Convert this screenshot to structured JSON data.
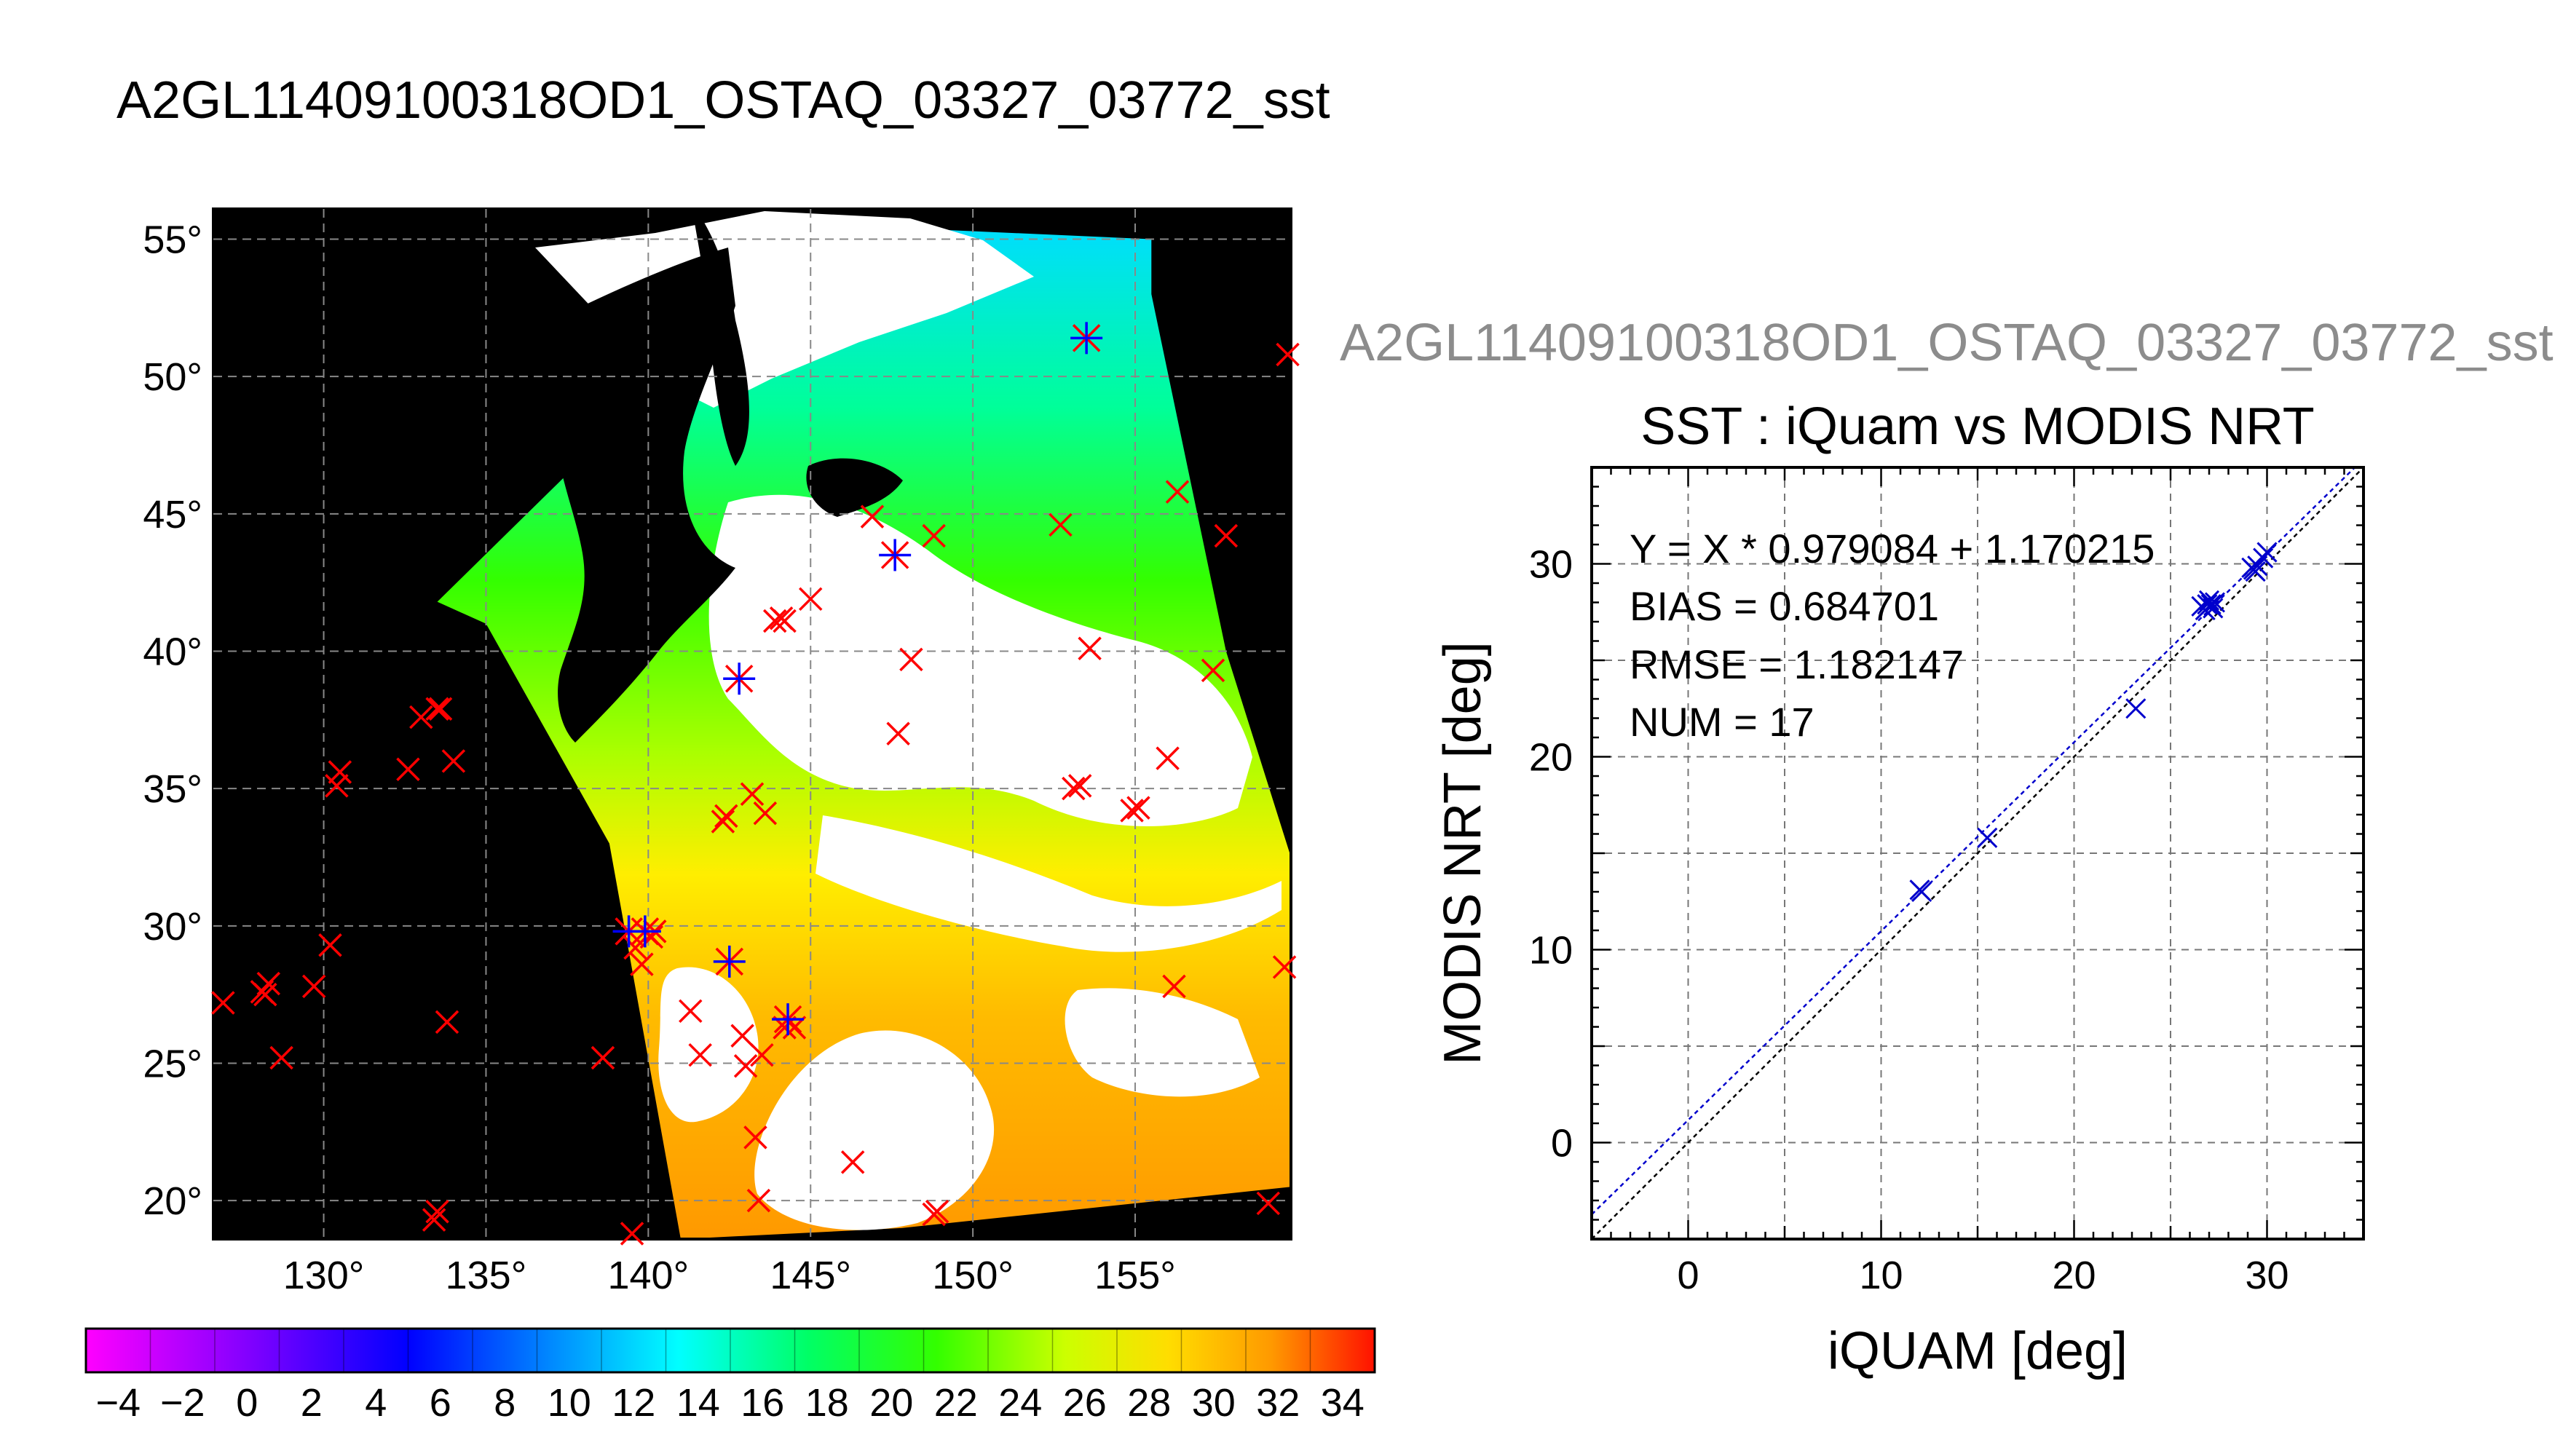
{
  "page": {
    "title": "A2GL11409100318OD1_OSTAQ_03327_03772_sst",
    "secondary_title": "A2GL11409100318OD1_OSTAQ_03327_03772_sst"
  },
  "chart_data": [
    {
      "type": "heatmap",
      "title": "A2GL11409100318OD1_OSTAQ_03327_03772_sst",
      "xlim": [
        126.6,
        159.8
      ],
      "ylim": [
        18.6,
        56.1
      ],
      "x_ticks": [
        130,
        135,
        140,
        145,
        150,
        155
      ],
      "x_tick_labels": [
        "130°",
        "135°",
        "140°",
        "145°",
        "150°",
        "155°"
      ],
      "y_ticks": [
        20,
        25,
        30,
        35,
        40,
        45,
        50,
        55
      ],
      "y_tick_labels": [
        "20°",
        "25°",
        "30°",
        "35°",
        "40°",
        "45°",
        "50°",
        "55°"
      ],
      "grid": true,
      "swath_lonlat": [
        [
          133.5,
          41.8
        ],
        [
          141.0,
          50.5
        ],
        [
          146.0,
          55.5
        ],
        [
          155.5,
          55.0
        ],
        [
          155.5,
          53.0
        ],
        [
          157.8,
          40.0
        ],
        [
          159.8,
          32.5
        ],
        [
          159.8,
          20.5
        ],
        [
          147.8,
          19.0
        ],
        [
          141.0,
          18.6
        ],
        [
          138.8,
          33.0
        ],
        [
          135.0,
          41.0
        ]
      ],
      "colorbar": {
        "min": -5,
        "max": 35,
        "step": 2,
        "tick_values": [
          -4,
          -2,
          0,
          2,
          4,
          6,
          8,
          10,
          12,
          14,
          16,
          18,
          20,
          22,
          24,
          26,
          28,
          30,
          32,
          34
        ],
        "tick_labels": [
          "−4",
          "−2",
          "0",
          "2",
          "4",
          "6",
          "8",
          "10",
          "12",
          "14",
          "16",
          "18",
          "20",
          "22",
          "24",
          "26",
          "28",
          "30",
          "32",
          "34"
        ]
      },
      "legend": {
        "ship_marker_color": "#ff0000",
        "matched_marker_color": "#0000ff"
      },
      "in_situ_points": [
        [
          126.9,
          27.2
        ],
        [
          128.3,
          27.9
        ],
        [
          128.2,
          27.5
        ],
        [
          128.1,
          27.6
        ],
        [
          128.7,
          25.2
        ],
        [
          129.7,
          27.8
        ],
        [
          130.2,
          29.3
        ],
        [
          130.4,
          35.1
        ],
        [
          130.5,
          35.6
        ],
        [
          132.6,
          35.7
        ],
        [
          133.0,
          37.6
        ],
        [
          133.5,
          37.9
        ],
        [
          133.6,
          37.9
        ],
        [
          134.0,
          36.0
        ],
        [
          133.8,
          26.5
        ],
        [
          133.5,
          19.6
        ],
        [
          133.4,
          19.3
        ],
        [
          138.6,
          25.2
        ],
        [
          139.5,
          18.8
        ],
        [
          139.6,
          29.2
        ],
        [
          139.8,
          28.6
        ],
        [
          140.1,
          29.6
        ],
        [
          140.2,
          29.8
        ],
        [
          141.3,
          26.9
        ],
        [
          141.6,
          25.3
        ],
        [
          142.3,
          33.8
        ],
        [
          142.4,
          34.0
        ],
        [
          142.9,
          26.0
        ],
        [
          143.0,
          24.9
        ],
        [
          143.2,
          34.8
        ],
        [
          143.5,
          25.3
        ],
        [
          143.6,
          34.1
        ],
        [
          143.3,
          22.3
        ],
        [
          143.4,
          20.0
        ],
        [
          144.2,
          26.3
        ],
        [
          144.5,
          26.3
        ],
        [
          143.9,
          41.1
        ],
        [
          144.1,
          41.2
        ],
        [
          144.2,
          41.1
        ],
        [
          145.0,
          41.9
        ],
        [
          146.3,
          21.4
        ],
        [
          146.9,
          44.9
        ],
        [
          147.7,
          37.0
        ],
        [
          148.1,
          39.7
        ],
        [
          148.8,
          44.2
        ],
        [
          148.9,
          19.6
        ],
        [
          148.8,
          19.5
        ],
        [
          152.7,
          44.6
        ],
        [
          153.1,
          35.0
        ],
        [
          153.3,
          35.1
        ],
        [
          153.6,
          40.1
        ],
        [
          154.9,
          34.2
        ],
        [
          155.1,
          34.3
        ],
        [
          156.0,
          36.1
        ],
        [
          156.2,
          27.8
        ],
        [
          156.3,
          45.8
        ],
        [
          157.4,
          39.3
        ],
        [
          157.8,
          44.2
        ],
        [
          159.1,
          19.9
        ],
        [
          159.6,
          28.5
        ],
        [
          159.7,
          50.8
        ]
      ],
      "matched_points": [
        [
          142.8,
          39.0
        ],
        [
          147.6,
          43.5
        ],
        [
          153.5,
          51.4
        ],
        [
          142.5,
          28.7
        ],
        [
          139.4,
          29.8
        ],
        [
          139.9,
          29.8
        ],
        [
          144.3,
          26.6
        ]
      ]
    },
    {
      "type": "scatter",
      "title": "SST : iQuam vs MODIS NRT",
      "xlabel": "iQUAM [deg]",
      "ylabel": "MODIS NRT [deg]",
      "xlim": [
        -5,
        35
      ],
      "ylim": [
        -5,
        35
      ],
      "x_ticks": [
        0,
        10,
        20,
        30
      ],
      "y_ticks": [
        0,
        10,
        20,
        30
      ],
      "grid": true,
      "stats": {
        "fit_label": "Y = X * 0.979084 + 1.170215",
        "bias_label": "BIAS = 0.684701",
        "rmse_label": "RMSE = 1.182147",
        "num_label": "NUM = 17"
      },
      "fit": {
        "slope": 0.979084,
        "intercept": 1.170215
      },
      "points": [
        {
          "x": 12.0,
          "y": 13.1
        },
        {
          "x": 12.1,
          "y": 13.0
        },
        {
          "x": 15.5,
          "y": 15.8
        },
        {
          "x": 23.2,
          "y": 22.5
        },
        {
          "x": 26.6,
          "y": 27.8
        },
        {
          "x": 26.8,
          "y": 27.6
        },
        {
          "x": 27.0,
          "y": 28.1
        },
        {
          "x": 27.1,
          "y": 27.9
        },
        {
          "x": 27.3,
          "y": 28.0
        },
        {
          "x": 27.2,
          "y": 27.7
        },
        {
          "x": 26.9,
          "y": 27.9
        },
        {
          "x": 29.2,
          "y": 29.8
        },
        {
          "x": 29.4,
          "y": 29.6
        },
        {
          "x": 29.5,
          "y": 29.9
        },
        {
          "x": 29.3,
          "y": 29.7
        },
        {
          "x": 29.8,
          "y": 30.3
        },
        {
          "x": 30.0,
          "y": 30.6
        }
      ],
      "colors": {
        "points": "#0000cc",
        "fit_line": "#0000cc",
        "identity_line": "#000000"
      }
    }
  ]
}
